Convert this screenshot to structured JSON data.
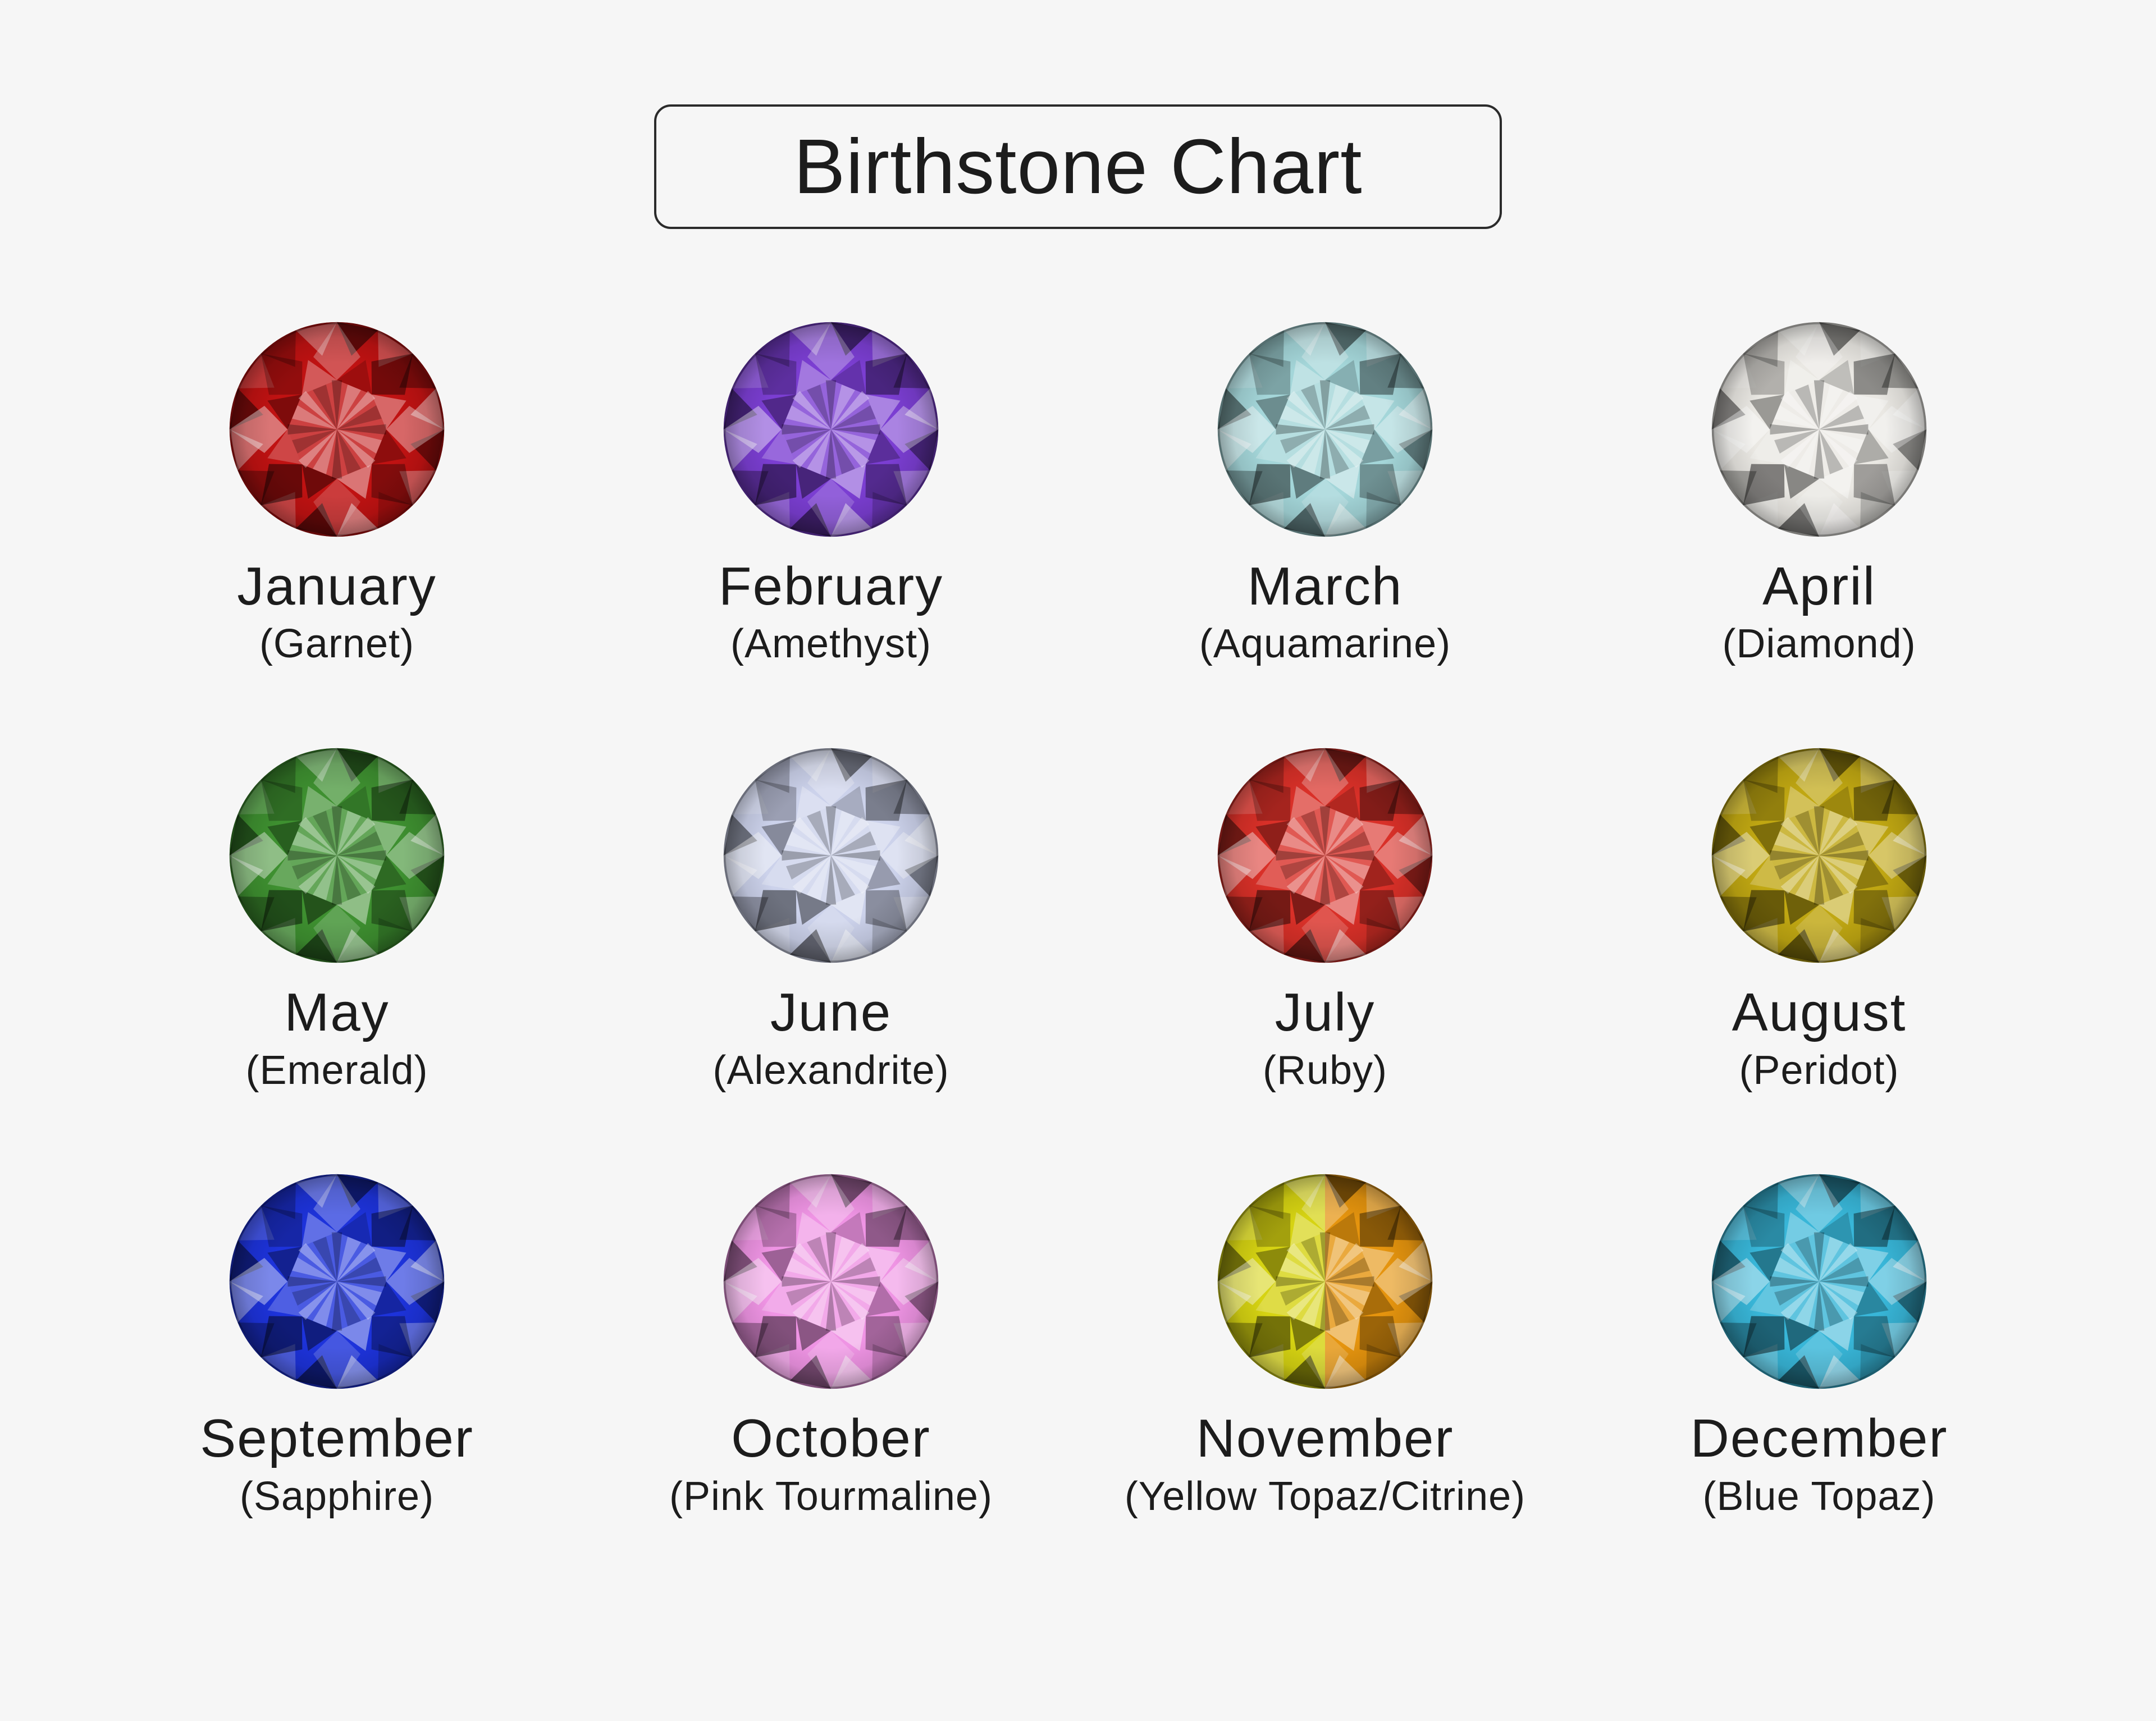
{
  "title": "Birthstone Chart",
  "page_background": "#f6f6f6",
  "text_color": "#1c1c1c",
  "title_border_color": "#2b2b2b",
  "months": [
    {
      "month": "January",
      "stone_label": "(Garnet)",
      "gem_color": "#c01212"
    },
    {
      "month": "February",
      "stone_label": "(Amethyst)",
      "gem_color": "#7b3ed2"
    },
    {
      "month": "March",
      "stone_label": "(Aquamarine)",
      "gem_color": "#a4d6d9"
    },
    {
      "month": "April",
      "stone_label": "(Diamond)",
      "gem_color": "#eae8e3"
    },
    {
      "month": "May",
      "stone_label": "(Emerald)",
      "gem_color": "#3e9030"
    },
    {
      "month": "June",
      "stone_label": "(Alexandrite)",
      "gem_color": "#ccd2eb"
    },
    {
      "month": "July",
      "stone_label": "(Ruby)",
      "gem_color": "#d93028"
    },
    {
      "month": "August",
      "stone_label": "(Peridot)",
      "gem_color": "#c0a712"
    },
    {
      "month": "September",
      "stone_label": "(Sapphire)",
      "gem_color": "#1d33db"
    },
    {
      "month": "October",
      "stone_label": "(Pink Tourmaline)",
      "gem_color": "#ef94e4"
    },
    {
      "month": "November",
      "stone_label": "(Yellow Topaz/Citrine)",
      "gem_color": "#d6d312",
      "gem_color2": "#e5940e"
    },
    {
      "month": "December",
      "stone_label": "(Blue Topaz)",
      "gem_color": "#38b6d8"
    }
  ]
}
